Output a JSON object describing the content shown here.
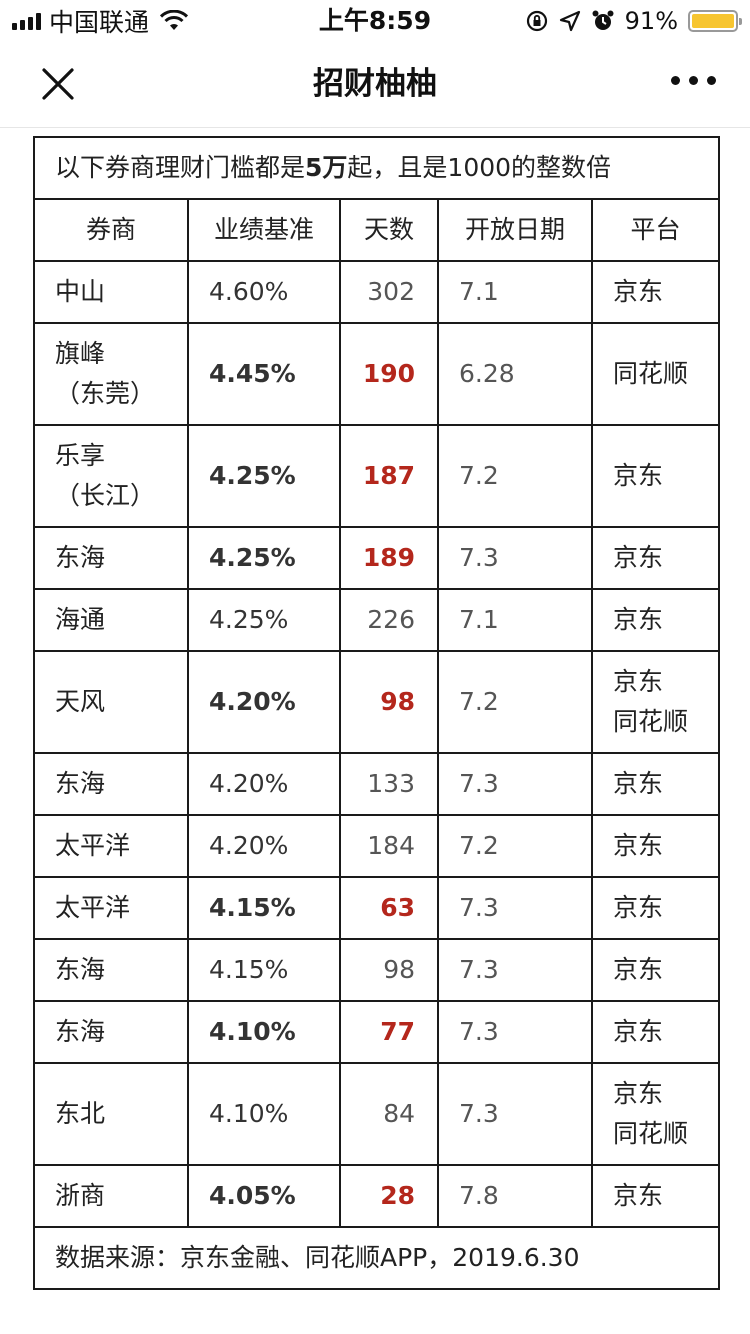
{
  "status_bar": {
    "carrier": "中国联通",
    "time": "上午8:59",
    "battery_percent": "91%"
  },
  "nav": {
    "title": "招财柚柚"
  },
  "table": {
    "note_prefix": "以下券商理财门槛都是",
    "note_amount": "5万",
    "note_suffix": "起，且是1000的整数倍",
    "headers": [
      "券商",
      "业绩基准",
      "天数",
      "开放日期",
      "平台"
    ],
    "rows": [
      {
        "broker": "中山",
        "broker_sub": "",
        "rate": "4.60%",
        "days": "302",
        "date": "7.1",
        "platform": "京东",
        "platform2": "",
        "highlight": false
      },
      {
        "broker": "旗峰",
        "broker_sub": "（东莞）",
        "rate": "4.45%",
        "days": "190",
        "date": "6.28",
        "platform": "同花顺",
        "platform2": "",
        "highlight": true
      },
      {
        "broker": "乐享",
        "broker_sub": "（长江）",
        "rate": "4.25%",
        "days": "187",
        "date": "7.2",
        "platform": "京东",
        "platform2": "",
        "highlight": true
      },
      {
        "broker": "东海",
        "broker_sub": "",
        "rate": "4.25%",
        "days": "189",
        "date": "7.3",
        "platform": "京东",
        "platform2": "",
        "highlight": true
      },
      {
        "broker": "海通",
        "broker_sub": "",
        "rate": "4.25%",
        "days": "226",
        "date": "7.1",
        "platform": "京东",
        "platform2": "",
        "highlight": false
      },
      {
        "broker": "天风",
        "broker_sub": "",
        "rate": "4.20%",
        "days": "98",
        "date": "7.2",
        "platform": "京东",
        "platform2": "同花顺",
        "highlight": true
      },
      {
        "broker": "东海",
        "broker_sub": "",
        "rate": "4.20%",
        "days": "133",
        "date": "7.3",
        "platform": "京东",
        "platform2": "",
        "highlight": false
      },
      {
        "broker": "太平洋",
        "broker_sub": "",
        "rate": "4.20%",
        "days": "184",
        "date": "7.2",
        "platform": "京东",
        "platform2": "",
        "highlight": false
      },
      {
        "broker": "太平洋",
        "broker_sub": "",
        "rate": "4.15%",
        "days": "63",
        "date": "7.3",
        "platform": "京东",
        "platform2": "",
        "highlight": true
      },
      {
        "broker": "东海",
        "broker_sub": "",
        "rate": "4.15%",
        "days": "98",
        "date": "7.3",
        "platform": "京东",
        "platform2": "",
        "highlight": false
      },
      {
        "broker": "东海",
        "broker_sub": "",
        "rate": "4.10%",
        "days": "77",
        "date": "7.3",
        "platform": "京东",
        "platform2": "",
        "highlight": true
      },
      {
        "broker": "东北",
        "broker_sub": "",
        "rate": "4.10%",
        "days": "84",
        "date": "7.3",
        "platform": "京东",
        "platform2": "同花顺",
        "highlight": false
      },
      {
        "broker": "浙商",
        "broker_sub": "",
        "rate": "4.05%",
        "days": "28",
        "date": "7.8",
        "platform": "京东",
        "platform2": "",
        "highlight": true
      }
    ],
    "footer": "数据来源：京东金融、同花顺APP，2019.6.30"
  },
  "colors": {
    "highlight": "#b4271c",
    "battery": "#f7c530"
  }
}
